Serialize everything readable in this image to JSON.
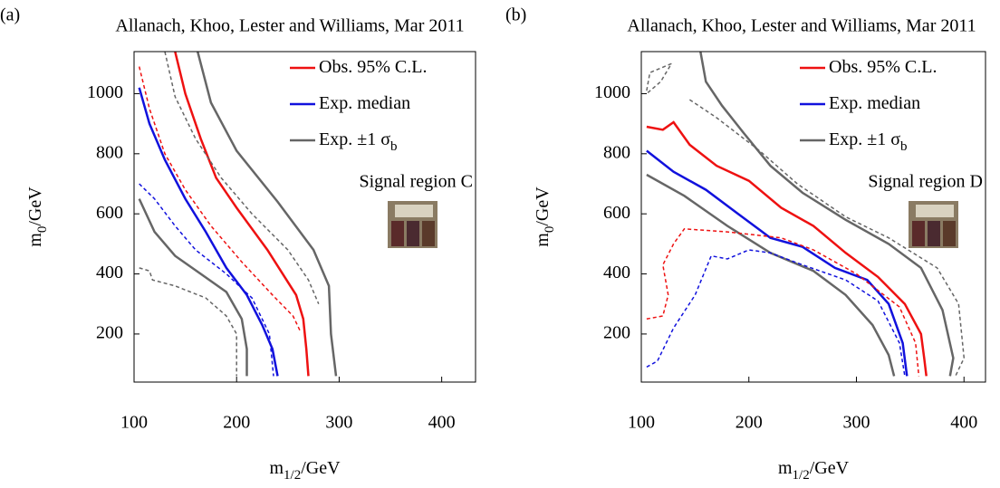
{
  "chart_data": [
    {
      "type": "line",
      "panel_label": "(a)",
      "credit": "Allanach, Khoo, Lester and Williams, Mar 2011",
      "annotation": "Signal region C",
      "xlabel": {
        "main": "m",
        "sub": "1/2",
        "tail": "/GeV"
      },
      "ylabel": {
        "main": "m",
        "sub": "0",
        "tail": "/GeV"
      },
      "xlim": [
        100,
        433
      ],
      "ylim": [
        40,
        1140
      ],
      "xticks": [
        100,
        200,
        300,
        400
      ],
      "yticks": [
        200,
        400,
        600,
        800,
        1000
      ],
      "legend": "upper right",
      "series": [
        {
          "name": "Obs. 95% C.L.",
          "color": "#ee1111",
          "dash": false,
          "x": [
            140,
            150,
            165,
            180,
            200,
            230,
            258,
            265,
            268,
            270
          ],
          "values": [
            1140,
            1000,
            850,
            720,
            620,
            480,
            330,
            250,
            150,
            60
          ]
        },
        {
          "name": "Exp. median",
          "color": "#1111dd",
          "dash": false,
          "x": [
            105,
            115,
            130,
            150,
            170,
            190,
            210,
            225,
            235,
            240
          ],
          "values": [
            1020,
            900,
            780,
            650,
            540,
            420,
            330,
            230,
            150,
            60
          ]
        },
        {
          "name": "Exp. ±1 σ",
          "name_sub": "b",
          "color": "#666666",
          "dash": false,
          "x": [
            162,
            175,
            200,
            240,
            275,
            290,
            292,
            297
          ],
          "values": [
            1140,
            970,
            810,
            640,
            480,
            360,
            200,
            60
          ]
        },
        {
          "color": "#666666",
          "dash": false,
          "x": [
            105,
            120,
            140,
            165,
            190,
            205,
            210,
            210
          ],
          "values": [
            650,
            540,
            460,
            400,
            340,
            250,
            150,
            60
          ]
        },
        {
          "color": "#ee1111",
          "dash": true,
          "x": [
            105,
            115,
            130,
            150,
            175,
            205,
            235,
            255,
            262
          ],
          "values": [
            1090,
            950,
            800,
            680,
            560,
            440,
            330,
            260,
            210
          ]
        },
        {
          "color": "#1111dd",
          "dash": true,
          "x": [
            105,
            120,
            140,
            160,
            190,
            215,
            232,
            236
          ],
          "values": [
            700,
            650,
            560,
            480,
            400,
            320,
            200,
            60
          ]
        },
        {
          "color": "#666666",
          "dash": true,
          "x": [
            130,
            140,
            160,
            185,
            215,
            250,
            270,
            280
          ],
          "values": [
            1140,
            990,
            850,
            720,
            600,
            480,
            380,
            300
          ]
        },
        {
          "color": "#666666",
          "dash": true,
          "x": [
            105,
            115,
            118,
            140,
            170,
            190,
            200,
            200
          ],
          "values": [
            420,
            410,
            380,
            360,
            320,
            260,
            200,
            60
          ]
        }
      ]
    },
    {
      "type": "line",
      "panel_label": "(b)",
      "credit": "Allanach, Khoo, Lester and Williams, Mar 2011",
      "annotation": "Signal region D",
      "xlabel": {
        "main": "m",
        "sub": "1/2",
        "tail": "/GeV"
      },
      "ylabel": {
        "main": "m",
        "sub": "0",
        "tail": "/GeV"
      },
      "xlim": [
        100,
        420
      ],
      "ylim": [
        40,
        1140
      ],
      "xticks": [
        100,
        200,
        300,
        400
      ],
      "yticks": [
        200,
        400,
        600,
        800,
        1000
      ],
      "legend": "upper right",
      "series": [
        {
          "name": "Obs. 95% C.L.",
          "color": "#ee1111",
          "dash": false,
          "x": [
            105,
            120,
            130,
            145,
            170,
            200,
            230,
            260,
            290,
            320,
            345,
            360,
            363,
            365
          ],
          "values": [
            890,
            880,
            905,
            830,
            760,
            710,
            620,
            560,
            470,
            390,
            300,
            200,
            120,
            60
          ]
        },
        {
          "name": "Exp. median",
          "color": "#1111dd",
          "dash": false,
          "x": [
            105,
            130,
            160,
            190,
            220,
            250,
            280,
            310,
            330,
            343,
            347
          ],
          "values": [
            810,
            740,
            680,
            600,
            520,
            490,
            420,
            380,
            300,
            170,
            60
          ]
        },
        {
          "name": "Exp. ±1 σ",
          "name_sub": "b",
          "color": "#666666",
          "dash": false,
          "x": [
            155,
            160,
            175,
            195,
            220,
            250,
            290,
            330,
            360,
            380,
            390,
            387
          ],
          "values": [
            1140,
            1040,
            960,
            870,
            760,
            670,
            580,
            500,
            420,
            280,
            120,
            60
          ]
        },
        {
          "color": "#666666",
          "dash": false,
          "x": [
            105,
            140,
            180,
            220,
            260,
            290,
            315,
            330,
            335
          ],
          "values": [
            730,
            660,
            560,
            470,
            410,
            330,
            230,
            130,
            60
          ]
        },
        {
          "color": "#ee1111",
          "dash": true,
          "x": [
            105,
            120,
            125,
            120,
            130,
            140,
            180,
            230,
            260,
            300,
            340,
            355,
            358
          ],
          "values": [
            250,
            260,
            330,
            430,
            500,
            550,
            540,
            520,
            480,
            400,
            290,
            170,
            60
          ]
        },
        {
          "color": "#1111dd",
          "dash": true,
          "x": [
            105,
            115,
            130,
            150,
            165,
            180,
            200,
            220,
            250,
            290,
            320,
            340,
            345
          ],
          "values": [
            90,
            110,
            220,
            330,
            460,
            450,
            480,
            470,
            430,
            380,
            310,
            170,
            60
          ]
        },
        {
          "color": "#666666",
          "dash": true,
          "x": [
            145,
            170,
            210,
            245,
            290,
            330,
            375,
            395,
            400,
            392
          ],
          "values": [
            980,
            920,
            810,
            700,
            590,
            520,
            420,
            300,
            120,
            60
          ]
        },
        {
          "color": "#666666",
          "dash": true,
          "x": [
            105,
            108,
            128,
            118,
            105
          ],
          "values": [
            1010,
            1070,
            1100,
            1040,
            1000
          ]
        }
      ]
    }
  ]
}
